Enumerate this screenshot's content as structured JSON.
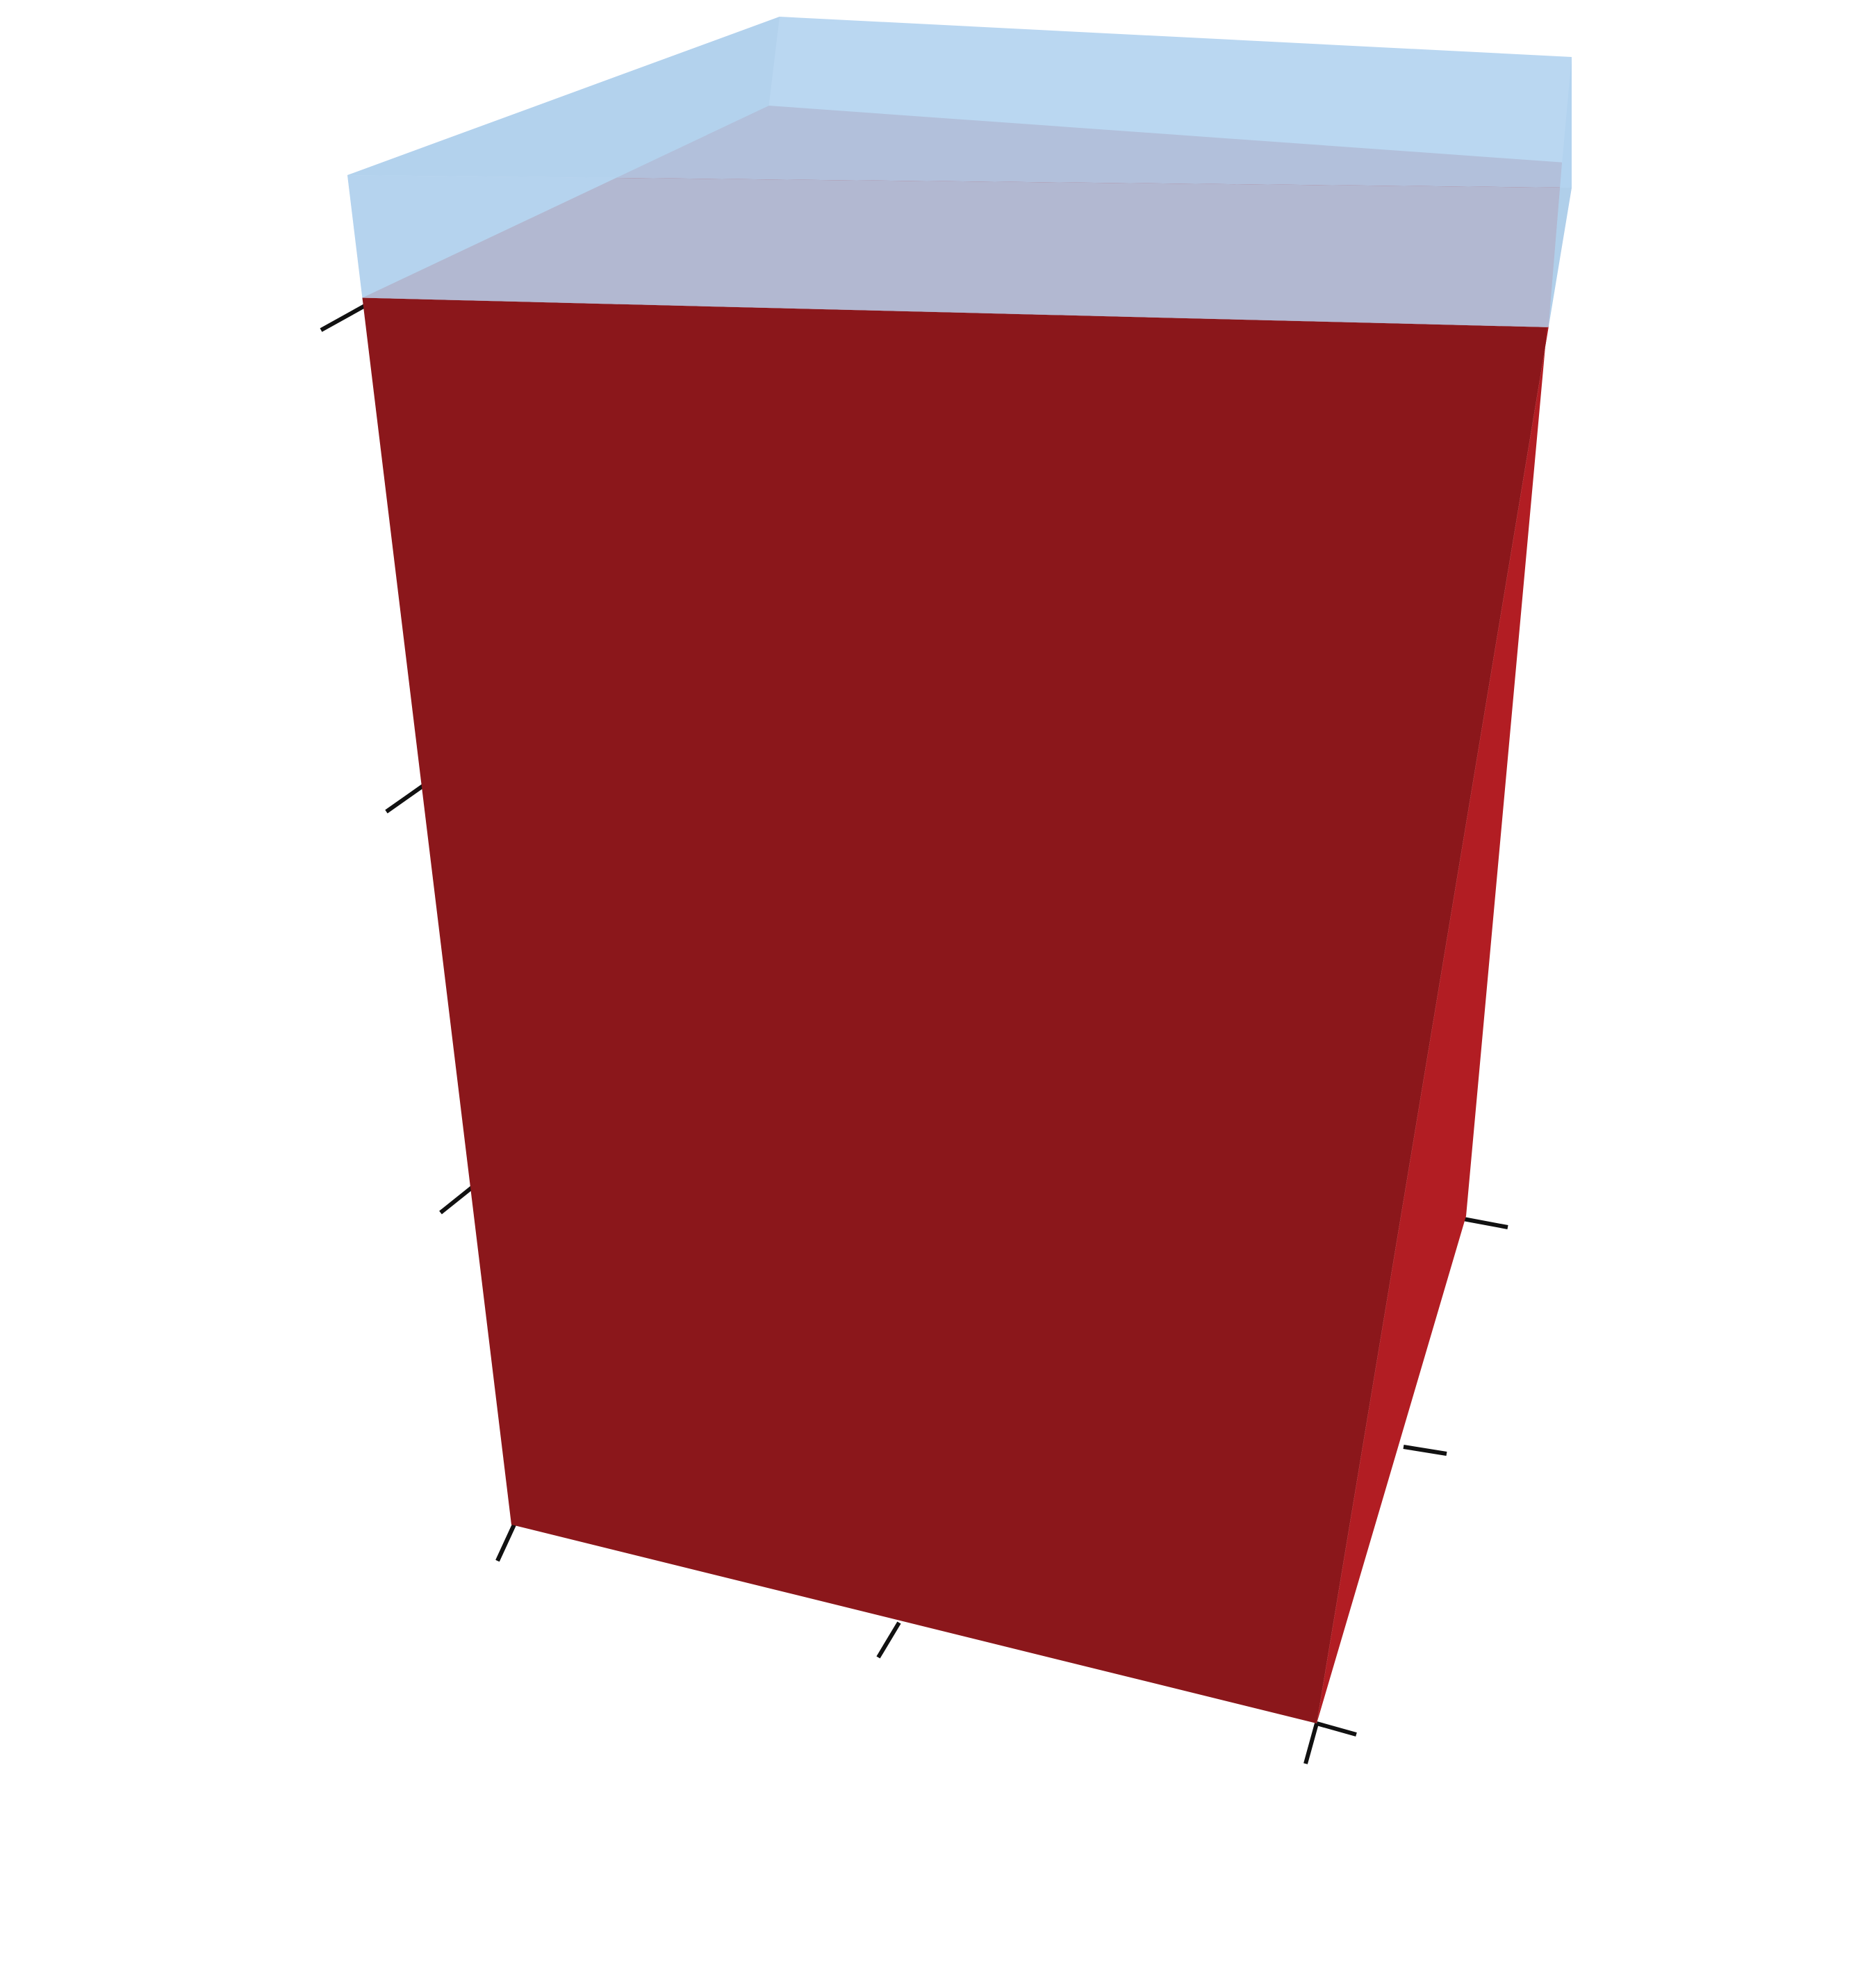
{
  "chart_data": {
    "type": "bar3d",
    "title": "",
    "xlabel": "",
    "ylabel": "",
    "zlabel": "",
    "x_ticks": [
      "",
      "",
      ""
    ],
    "y_ticks": [
      "",
      "",
      ""
    ],
    "z_ticks": [
      "",
      "",
      "",
      ""
    ],
    "bars": [
      {
        "x": 0,
        "y": 0,
        "value": 1.0,
        "color": "#8b171b",
        "opacity": 1.0
      },
      {
        "x": 0,
        "y": 0,
        "value": 1.1,
        "color": "#b3d3f0",
        "opacity": 0.9
      }
    ],
    "grid": false,
    "legend": "none"
  }
}
